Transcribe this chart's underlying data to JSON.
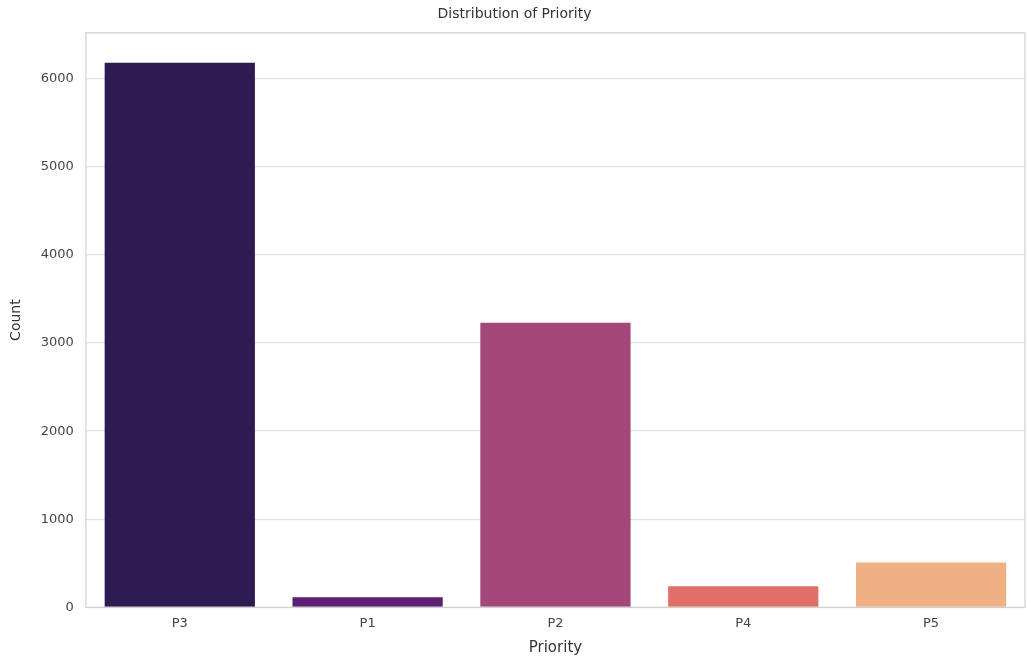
{
  "chart_data": {
    "type": "bar",
    "title": "Distribution of Priority",
    "xlabel": "Priority",
    "ylabel": "Count",
    "categories": [
      "P3",
      "P1",
      "P2",
      "P4",
      "P5"
    ],
    "values": [
      6180,
      115,
      3230,
      240,
      510
    ],
    "colors": [
      "#2f1b53",
      "#5c1f73",
      "#a3467a",
      "#e06f69",
      "#efb083"
    ],
    "ylim": [
      0,
      6520
    ],
    "yticks": [
      0,
      1000,
      2000,
      3000,
      4000,
      5000,
      6000
    ],
    "grid": "y",
    "legend": false
  }
}
